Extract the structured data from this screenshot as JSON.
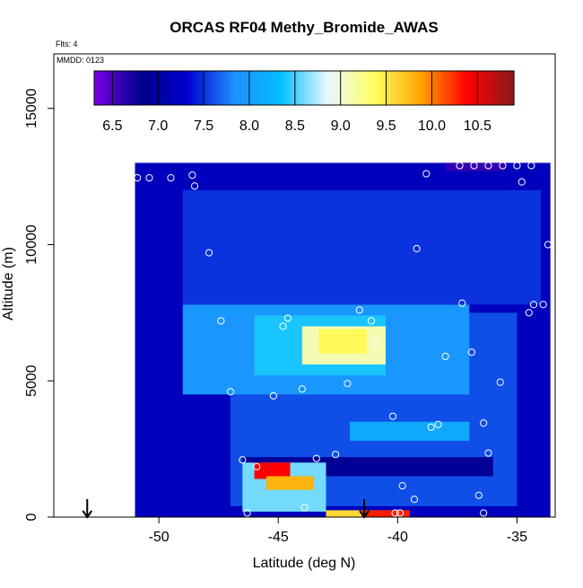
{
  "chart_data": {
    "type": "heatmap",
    "title": "ORCAS RF04 Methy_Bromide_AWAS",
    "annotations": [
      "Flts: 4",
      "MMDD: 0123"
    ],
    "xlabel": "Latitude (deg N)",
    "ylabel": "Altitude (m)",
    "xlim": [
      -54.4,
      -33.4
    ],
    "ylim": [
      0,
      17000
    ],
    "x_ticks": [
      -50,
      -45,
      -40,
      -35
    ],
    "y_ticks": [
      0,
      5000,
      10000,
      15000
    ],
    "colorbar": {
      "range": [
        6.3,
        10.9
      ],
      "ticks": [
        6.5,
        7.0,
        7.5,
        8.0,
        8.5,
        9.0,
        9.5,
        10.0,
        10.5
      ],
      "colors": [
        "#7a00e6",
        "#00008b",
        "#0000cd",
        "#1e90ff",
        "#00bfff",
        "#e8f8ff",
        "#ffff60",
        "#ffa500",
        "#ff0000",
        "#8b1a1a"
      ]
    },
    "grid": false,
    "field_regions": [
      {
        "x": [
          -51,
          -33.6
        ],
        "y": [
          0,
          13000
        ],
        "value": 7.2
      },
      {
        "x": [
          -47,
          -35
        ],
        "y": [
          400,
          7500
        ],
        "value": 7.6
      },
      {
        "x": [
          -49,
          -37
        ],
        "y": [
          4500,
          7800
        ],
        "value": 7.9
      },
      {
        "x": [
          -46,
          -40.5
        ],
        "y": [
          5200,
          7400
        ],
        "value": 8.4
      },
      {
        "x": [
          -44,
          -40.5
        ],
        "y": [
          5600,
          7000
        ],
        "value": 9.1
      },
      {
        "x": [
          -43.3,
          -41.3
        ],
        "y": [
          6000,
          6900
        ],
        "value": 9.4
      },
      {
        "x": [
          -49,
          -34
        ],
        "y": [
          7800,
          12000
        ],
        "value": 7.5
      },
      {
        "x": [
          -46.5,
          -36
        ],
        "y": [
          1500,
          2200
        ],
        "value": 6.9
      },
      {
        "x": [
          -46.5,
          -43
        ],
        "y": [
          200,
          2000
        ],
        "value": 8.6
      },
      {
        "x": [
          -46,
          -44.5
        ],
        "y": [
          1400,
          2000
        ],
        "value": 10.4
      },
      {
        "x": [
          -45.5,
          -43.5
        ],
        "y": [
          1000,
          1500
        ],
        "value": 9.8
      },
      {
        "x": [
          -43,
          -39.5
        ],
        "y": [
          0,
          250
        ],
        "value": 9.6
      },
      {
        "x": [
          -41.5,
          -39.5
        ],
        "y": [
          0,
          250
        ],
        "value": 10.3
      },
      {
        "x": [
          -42,
          -37
        ],
        "y": [
          2800,
          3500
        ],
        "value": 8.1
      },
      {
        "x": [
          -38,
          -35.5
        ],
        "y": [
          12700,
          13000
        ],
        "value": 6.6
      }
    ],
    "sample_points": [
      {
        "x": -50.9,
        "y": 12450
      },
      {
        "x": -50.4,
        "y": 12450
      },
      {
        "x": -49.5,
        "y": 12450
      },
      {
        "x": -48.6,
        "y": 12550
      },
      {
        "x": -48.5,
        "y": 12150
      },
      {
        "x": -47.9,
        "y": 9700
      },
      {
        "x": -47.4,
        "y": 7200
      },
      {
        "x": -47.0,
        "y": 4600
      },
      {
        "x": -46.5,
        "y": 2100
      },
      {
        "x": -45.9,
        "y": 1850
      },
      {
        "x": -46.3,
        "y": 150
      },
      {
        "x": -45.2,
        "y": 4450
      },
      {
        "x": -44.6,
        "y": 7300
      },
      {
        "x": -44.8,
        "y": 7000
      },
      {
        "x": -44.0,
        "y": 4700
      },
      {
        "x": -43.4,
        "y": 2150
      },
      {
        "x": -42.6,
        "y": 2300
      },
      {
        "x": -42.1,
        "y": 4900
      },
      {
        "x": -41.6,
        "y": 7600
      },
      {
        "x": -41.1,
        "y": 7200
      },
      {
        "x": -40.9,
        "y": 6400
      },
      {
        "x": -40.2,
        "y": 3700
      },
      {
        "x": -39.8,
        "y": 1150
      },
      {
        "x": -39.3,
        "y": 650
      },
      {
        "x": -39.2,
        "y": 9850
      },
      {
        "x": -38.8,
        "y": 12600
      },
      {
        "x": -38.6,
        "y": 3300
      },
      {
        "x": -38.3,
        "y": 3400
      },
      {
        "x": -38.0,
        "y": 5900
      },
      {
        "x": -37.4,
        "y": 12900
      },
      {
        "x": -36.8,
        "y": 12900
      },
      {
        "x": -36.2,
        "y": 12900
      },
      {
        "x": -35.6,
        "y": 12900
      },
      {
        "x": -35.0,
        "y": 12900
      },
      {
        "x": -34.4,
        "y": 12900
      },
      {
        "x": -36.4,
        "y": 3450
      },
      {
        "x": -36.2,
        "y": 2350
      },
      {
        "x": -36.6,
        "y": 800
      },
      {
        "x": -36.4,
        "y": 150
      },
      {
        "x": -36.9,
        "y": 6050
      },
      {
        "x": -37.3,
        "y": 7850
      },
      {
        "x": -35.7,
        "y": 4950
      },
      {
        "x": -34.5,
        "y": 7500
      },
      {
        "x": -34.3,
        "y": 7800
      },
      {
        "x": -33.9,
        "y": 7800
      },
      {
        "x": -34.8,
        "y": 12300
      },
      {
        "x": -33.7,
        "y": 10000
      },
      {
        "x": -43.9,
        "y": 350
      },
      {
        "x": -40.1,
        "y": 150
      },
      {
        "x": -39.9,
        "y": 150
      }
    ],
    "markers": [
      {
        "x": -53.0
      },
      {
        "x": -41.4
      }
    ]
  }
}
